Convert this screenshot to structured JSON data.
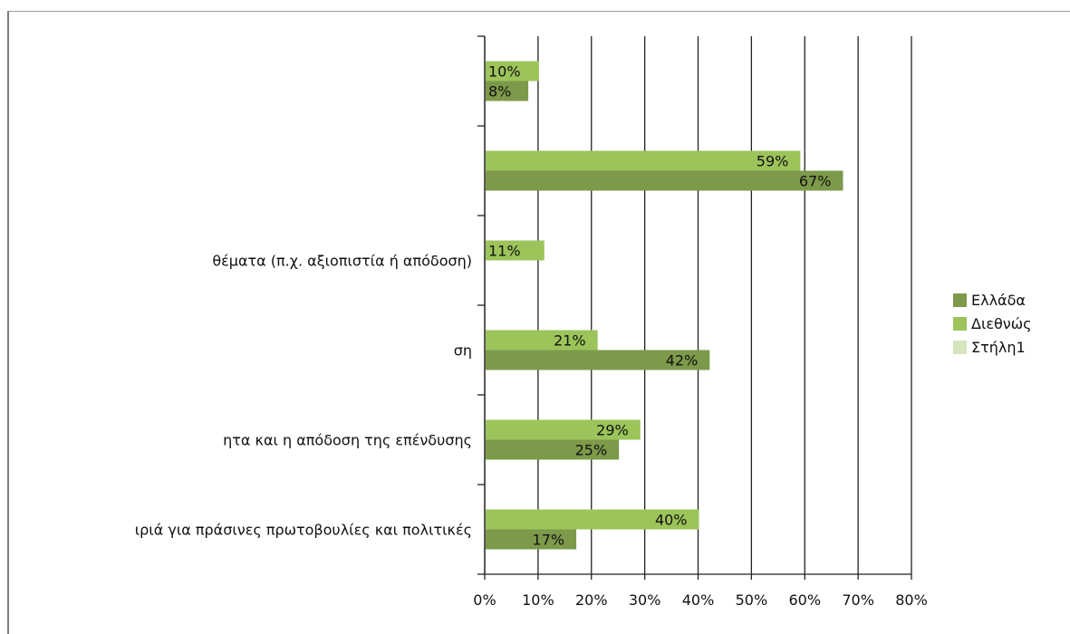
{
  "chart_data": {
    "type": "bar",
    "orientation": "horizontal",
    "categories": [
      "",
      "",
      "θέματα (π.χ. αξιοπιστία ή απόδοση)",
      "ση",
      "ητα και η απόδοση της επένδυσης",
      "ιριά για πράσινες πρωτοβουλίες και πολιτικές"
    ],
    "series": [
      {
        "name": "Ελλάδα",
        "color": "#7c9a4a",
        "values": [
          8,
          67,
          null,
          42,
          25,
          17
        ]
      },
      {
        "name": "Διεθνώς",
        "color": "#9cc45a",
        "values": [
          10,
          59,
          11,
          21,
          29,
          40
        ]
      },
      {
        "name": "Στήλη1",
        "color": "#d6e5bd",
        "values": [
          null,
          null,
          null,
          null,
          null,
          null
        ]
      }
    ],
    "xlim": [
      0,
      80
    ],
    "xticks": [
      "0%",
      "10%",
      "20%",
      "30%",
      "40%",
      "50%",
      "60%",
      "70%",
      "80%"
    ],
    "value_suffix": "%",
    "grid": true,
    "legend_position": "right",
    "title": "",
    "xlabel": "",
    "ylabel": ""
  }
}
